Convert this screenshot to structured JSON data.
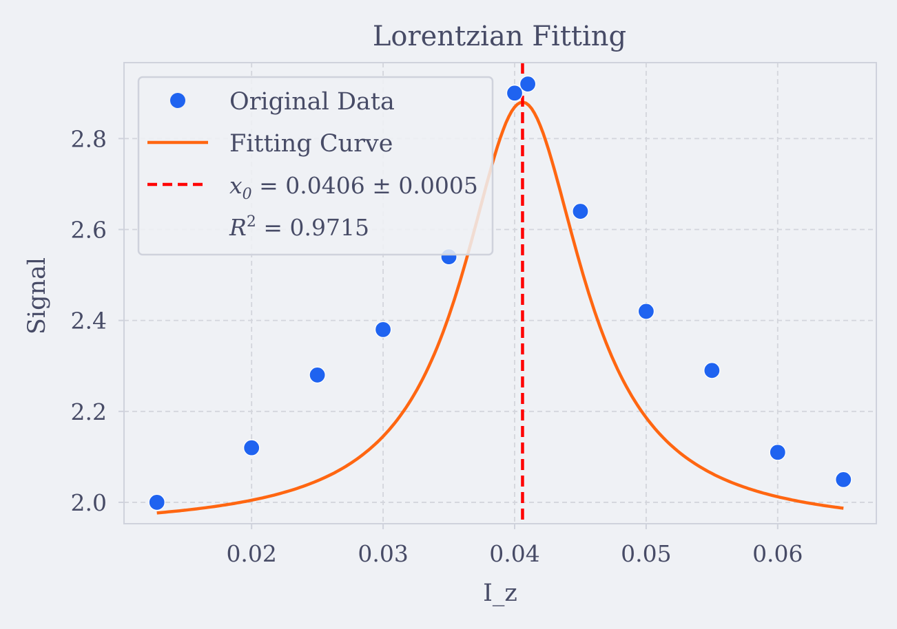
{
  "chart_data": {
    "type": "scatter",
    "title": "Lorentzian Fitting",
    "xlabel": "I_z",
    "ylabel": "Signal",
    "xlim": [
      0.0103,
      0.0675
    ],
    "ylim": [
      1.953,
      2.967
    ],
    "xticks": [
      0.02,
      0.03,
      0.04,
      0.05,
      0.06
    ],
    "xtick_labels": [
      "0.02",
      "0.03",
      "0.04",
      "0.05",
      "0.06"
    ],
    "yticks": [
      2.0,
      2.2,
      2.4,
      2.6,
      2.8
    ],
    "ytick_labels": [
      "2.0",
      "2.2",
      "2.4",
      "2.6",
      "2.8"
    ],
    "grid": true,
    "legend_position": "top-left",
    "series": [
      {
        "name": "Original Data",
        "kind": "points",
        "color": "#1f63f0",
        "x": [
          0.0128,
          0.02,
          0.025,
          0.03,
          0.035,
          0.04,
          0.041,
          0.045,
          0.05,
          0.055,
          0.06,
          0.065
        ],
        "y": [
          2.0,
          2.12,
          2.28,
          2.38,
          2.54,
          2.9,
          2.92,
          2.64,
          2.42,
          2.29,
          2.11,
          2.05
        ]
      },
      {
        "name": "Fitting Curve",
        "kind": "lorentzian",
        "color": "#ff6611",
        "x_range": [
          0.0128,
          0.065
        ],
        "params": {
          "baseline": 1.94,
          "amplitude": 0.94,
          "x0": 0.0406,
          "gamma": 0.0056
        }
      },
      {
        "name": "x_0 = 0.0406 ± 0.0005",
        "kind": "vline",
        "color": "#ff0000",
        "x": 0.0406
      }
    ],
    "legend": {
      "entries": [
        {
          "label": "Original Data",
          "marker": "dot",
          "color": "#1f63f0"
        },
        {
          "label": "Fitting Curve",
          "marker": "line",
          "color": "#ff6611"
        },
        {
          "base": "x",
          "sub": "0",
          "rest": " = 0.0406 ± 0.0005",
          "marker": "dashed",
          "color": "#ff0000"
        },
        {
          "base": "R",
          "sup": "2",
          "rest": " = 0.9715",
          "marker": "none"
        }
      ]
    }
  }
}
